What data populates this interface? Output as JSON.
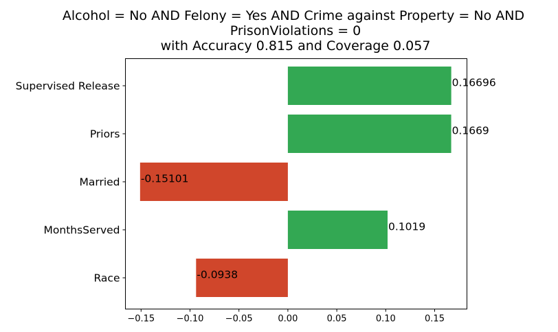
{
  "chart_data": {
    "type": "bar",
    "orientation": "horizontal",
    "title_lines": [
      "Alcohol = No AND Felony = Yes AND Crime against Property = No AND",
      "PrisonViolations = 0",
      "with Accuracy 0.815 and Coverage 0.057"
    ],
    "categories": [
      "Supervised Release",
      "Priors",
      "Married",
      "MonthsServed",
      "Race"
    ],
    "values": [
      0.16696,
      0.1669,
      -0.15101,
      0.1019,
      -0.0938
    ],
    "value_labels": [
      "0.16696",
      "0.1669",
      "-0.15101",
      "0.1019",
      "-0.0938"
    ],
    "xlim": [
      -0.166,
      0.183
    ],
    "xticks": [
      -0.15,
      -0.1,
      -0.05,
      0.0,
      0.05,
      0.1,
      0.15
    ],
    "xtick_labels": [
      "−0.15",
      "−0.10",
      "−0.05",
      "0.00",
      "0.05",
      "0.10",
      "0.15"
    ],
    "xlabel": "",
    "ylabel": "",
    "grid": false,
    "colors": {
      "positive": "#33a853",
      "negative": "#d0462b"
    }
  }
}
